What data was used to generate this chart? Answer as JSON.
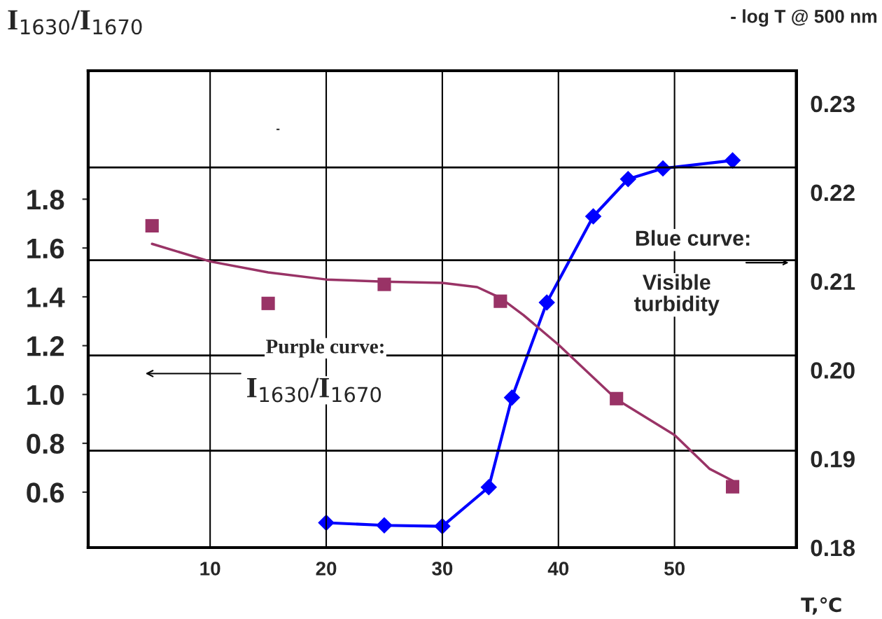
{
  "chart_data": {
    "type": "scatter",
    "ylabel": "I$_{1630}$/I$_{ 1670}$",
    "y2label": "- log T @ 500 nm",
    "xlabel": "T,℃",
    "xlim": [
      -0.5,
      60.5
    ],
    "xticks": [
      10,
      20,
      30,
      40,
      50
    ],
    "ylim": [
      0.373,
      2.326
    ],
    "yticks": [
      {
        "value": 0.6,
        "label": "0.6"
      },
      {
        "value": 0.8,
        "label": "0.8"
      },
      {
        "value": 1.0,
        "label": "1.0"
      },
      {
        "value": 1.2,
        "label": "1.2"
      },
      {
        "value": 1.4,
        "label": "1.4"
      },
      {
        "value": 1.6,
        "label": "1.6"
      },
      {
        "value": 1.8,
        "label": "1.8"
      }
    ],
    "y2lim": [
      0.18,
      0.2337
    ],
    "y2ticks": [
      {
        "value": 0.18,
        "label": "0.18"
      },
      {
        "value": 0.19,
        "label": "0.19"
      },
      {
        "value": 0.2,
        "label": "0.20"
      },
      {
        "value": 0.21,
        "label": "0.21"
      },
      {
        "value": 0.22,
        "label": "0.22"
      },
      {
        "value": 0.23,
        "label": "0.23"
      }
    ],
    "grid": "x",
    "series": [
      {
        "color": "#993366",
        "marker": "square",
        "x": [
          5,
          15,
          25,
          35,
          45,
          55
        ],
        "values": [
          1.691,
          1.373,
          1.451,
          1.382,
          0.983,
          0.622
        ]
      },
      {
        "type": "line",
        "color": "#993366",
        "marker": "none",
        "x": [
          5,
          10,
          15,
          20,
          25,
          30,
          33,
          35,
          37,
          40,
          45,
          50,
          53,
          55
        ],
        "values": [
          1.617,
          1.545,
          1.5,
          1.471,
          1.462,
          1.457,
          1.44,
          1.396,
          1.325,
          1.204,
          0.98,
          0.834,
          0.696,
          0.647
        ]
      },
      {
        "type": "line",
        "axis": "y2",
        "color": "#0000ff",
        "marker": "diamond",
        "x": [
          20,
          25,
          30,
          34,
          36,
          39,
          43,
          46,
          49,
          55
        ],
        "values": [
          0.1828,
          0.1825,
          0.1824,
          0.1868,
          0.1969,
          0.2076,
          0.2173,
          0.2215,
          0.2227,
          0.2236
        ]
      }
    ],
    "ref_lines": [
      {
        "axis": "y",
        "value": 1.93,
        "color": "#000000"
      },
      {
        "axis": "y",
        "value": 1.55,
        "color": "#000000"
      },
      {
        "axis": "y",
        "value": 1.16,
        "color": "#000000"
      },
      {
        "axis": "y",
        "value": 0.77,
        "color": "#000000"
      }
    ],
    "annotations": [
      "-",
      "Purple curve:",
      "I$_{1630}$/I$_{ 1670}$",
      {
        "text": "Blue curve:",
        "x": 60,
        "y": 1.54
      },
      "Visible\nturbidity"
    ]
  }
}
